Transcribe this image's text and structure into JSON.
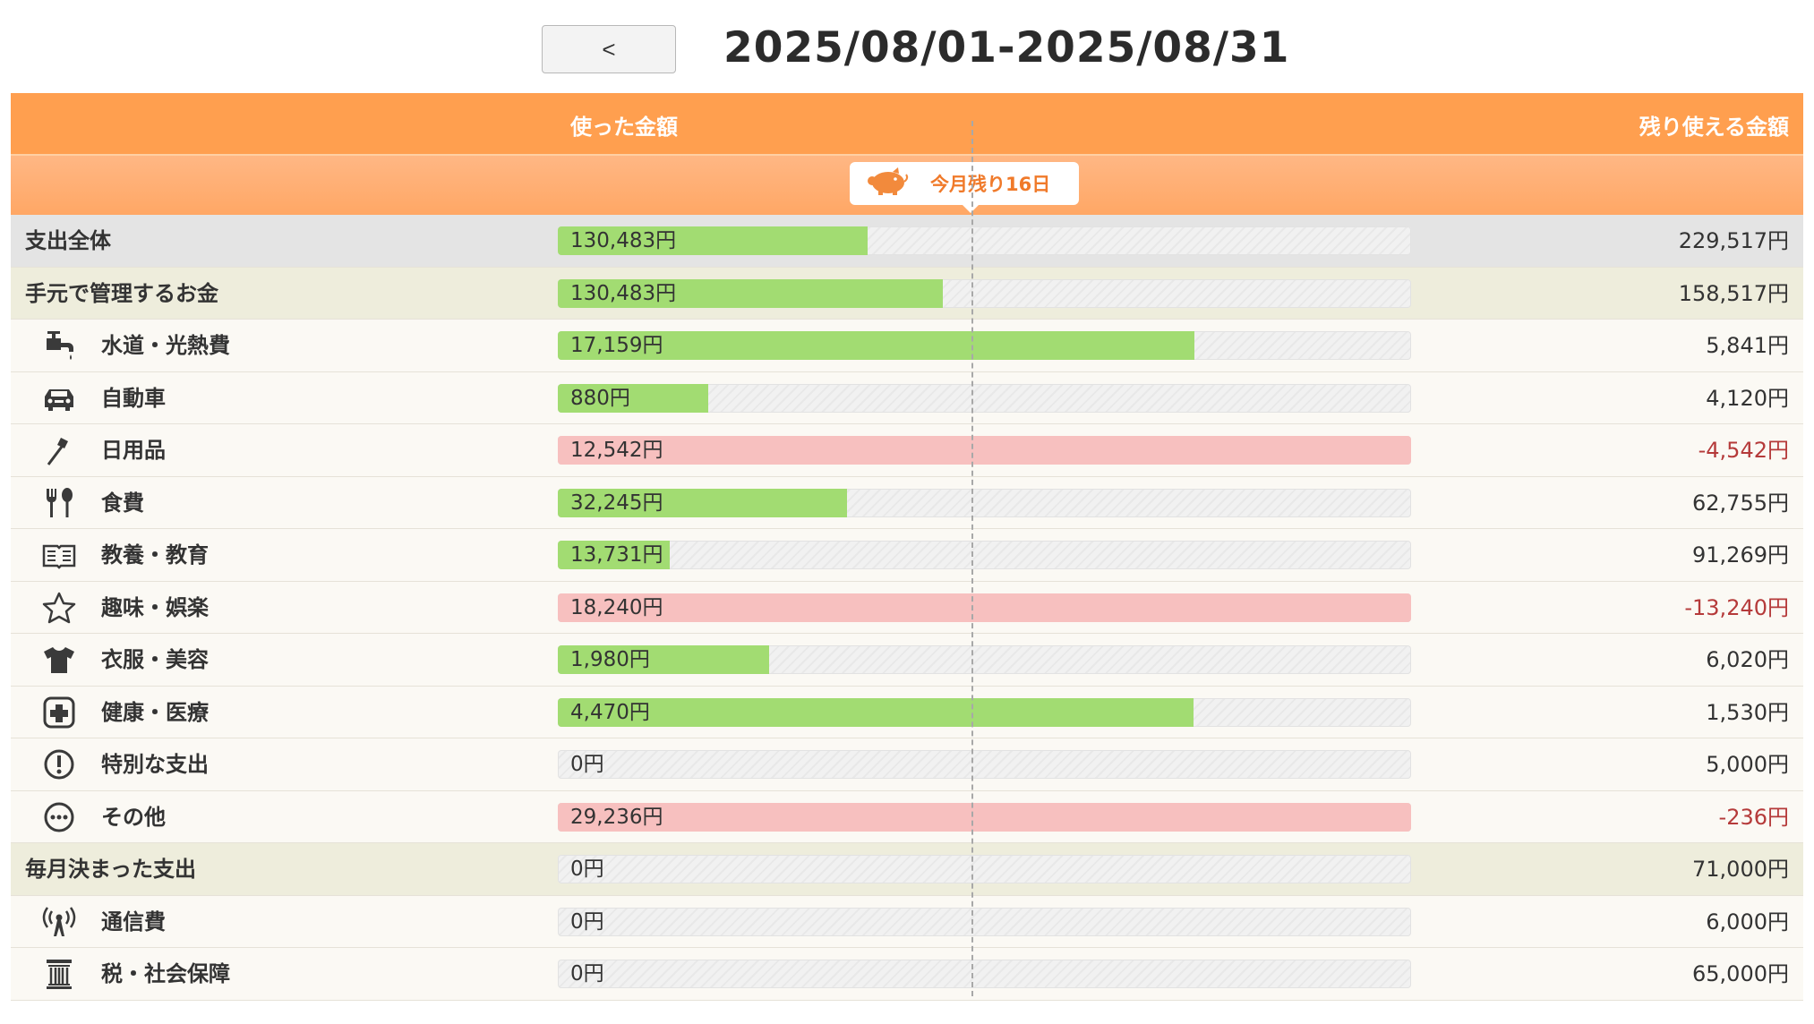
{
  "nav": {
    "prev_label": "<"
  },
  "period": "2025/08/01-2025/08/31",
  "header": {
    "spent_label": "使った金額",
    "remain_label": "残り使える金額"
  },
  "days_left_label": "今月残り16日",
  "today_fraction": 0.485,
  "rows": [
    {
      "type": "total",
      "label": "支出全体",
      "spent": "130,483円",
      "remaining": "229,517円",
      "fill": 0.363,
      "over": false,
      "negative": false,
      "name": "row-total-expense"
    },
    {
      "type": "group",
      "label": "手元で管理するお金",
      "spent": "130,483円",
      "remaining": "158,517円",
      "fill": 0.451,
      "over": false,
      "negative": false,
      "name": "row-managed-money"
    },
    {
      "type": "item",
      "icon": "faucet-icon",
      "label": "水道・光熱費",
      "spent": "17,159円",
      "remaining": "5,841円",
      "fill": 0.746,
      "over": false,
      "negative": false,
      "name": "row-utilities"
    },
    {
      "type": "item",
      "icon": "car-icon",
      "label": "自動車",
      "spent": "880円",
      "remaining": "4,120円",
      "fill": 0.176,
      "over": false,
      "negative": false,
      "name": "row-car"
    },
    {
      "type": "item",
      "icon": "toothbrush-icon",
      "label": "日用品",
      "spent": "12,542円",
      "remaining": "-4,542円",
      "fill": 1.0,
      "over": true,
      "negative": true,
      "name": "row-daily-goods"
    },
    {
      "type": "item",
      "icon": "fork-spoon-icon",
      "label": "食費",
      "spent": "32,245円",
      "remaining": "62,755円",
      "fill": 0.339,
      "over": false,
      "negative": false,
      "name": "row-food"
    },
    {
      "type": "item",
      "icon": "book-icon",
      "label": "教養・教育",
      "spent": "13,731円",
      "remaining": "91,269円",
      "fill": 0.131,
      "over": false,
      "negative": false,
      "name": "row-education"
    },
    {
      "type": "item",
      "icon": "star-icon",
      "label": "趣味・娯楽",
      "spent": "18,240円",
      "remaining": "-13,240円",
      "fill": 1.0,
      "over": true,
      "negative": true,
      "name": "row-hobby"
    },
    {
      "type": "item",
      "icon": "shirt-icon",
      "label": "衣服・美容",
      "spent": "1,980円",
      "remaining": "6,020円",
      "fill": 0.248,
      "over": false,
      "negative": false,
      "name": "row-clothing"
    },
    {
      "type": "item",
      "icon": "medical-cross-icon",
      "label": "健康・医療",
      "spent": "4,470円",
      "remaining": "1,530円",
      "fill": 0.745,
      "over": false,
      "negative": false,
      "name": "row-health"
    },
    {
      "type": "item",
      "icon": "exclamation-circle-icon",
      "label": "特別な支出",
      "spent": "0円",
      "remaining": "5,000円",
      "fill": 0,
      "over": false,
      "negative": false,
      "name": "row-special"
    },
    {
      "type": "item",
      "icon": "ellipsis-circle-icon",
      "label": "その他",
      "spent": "29,236円",
      "remaining": "-236円",
      "fill": 1.0,
      "over": true,
      "negative": true,
      "name": "row-other"
    },
    {
      "type": "group",
      "label": "毎月決まった支出",
      "spent": "0円",
      "remaining": "71,000円",
      "fill": 0,
      "over": false,
      "negative": false,
      "name": "row-fixed-expense"
    },
    {
      "type": "item",
      "icon": "antenna-icon",
      "label": "通信費",
      "spent": "0円",
      "remaining": "6,000円",
      "fill": 0,
      "over": false,
      "negative": false,
      "name": "row-communication"
    },
    {
      "type": "item",
      "icon": "pillar-icon",
      "label": "税・社会保障",
      "spent": "0円",
      "remaining": "65,000円",
      "fill": 0,
      "over": false,
      "negative": false,
      "name": "row-tax"
    }
  ]
}
